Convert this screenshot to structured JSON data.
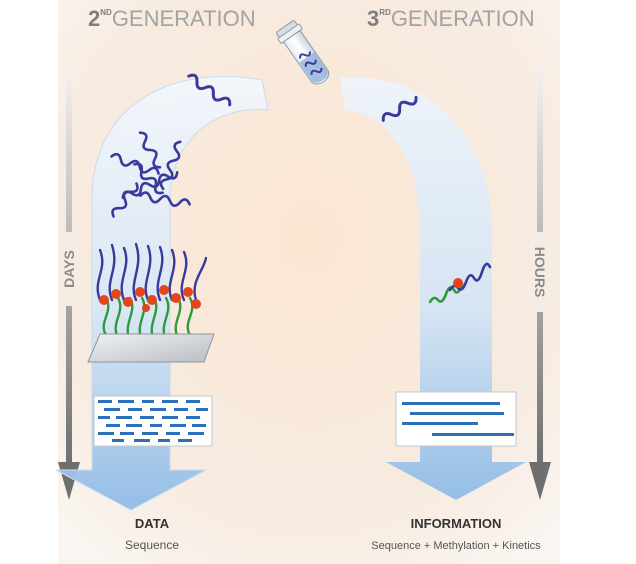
{
  "titles": {
    "left": {
      "num": "2",
      "sup": "ND",
      "word": "GENERATION"
    },
    "right": {
      "num": "3",
      "sup": "RD",
      "word": "GENERATION"
    }
  },
  "axes": {
    "left": "DAYS",
    "right": "HOURS"
  },
  "outputs": {
    "left": {
      "title": "DATA",
      "subtitle": "Sequence"
    },
    "right": {
      "title": "INFORMATION",
      "subtitle": "Sequence + Methylation + Kinetics"
    }
  },
  "colors": {
    "background_glow": "#f8e0c8",
    "arrow_light": "#eef4fb",
    "arrow_dark": "#a9cbea",
    "dna_blue": "#3a3a9c",
    "dna_green": "#2f9a3c",
    "dye_orange": "#e2461b",
    "read_blue": "#2c70b8",
    "axis_gray": "#7a7a7a",
    "title_gray": "#a0a0a0"
  },
  "icons": [
    "sample-tube-icon",
    "dna-fragment-icon",
    "flow-cell-icon"
  ]
}
